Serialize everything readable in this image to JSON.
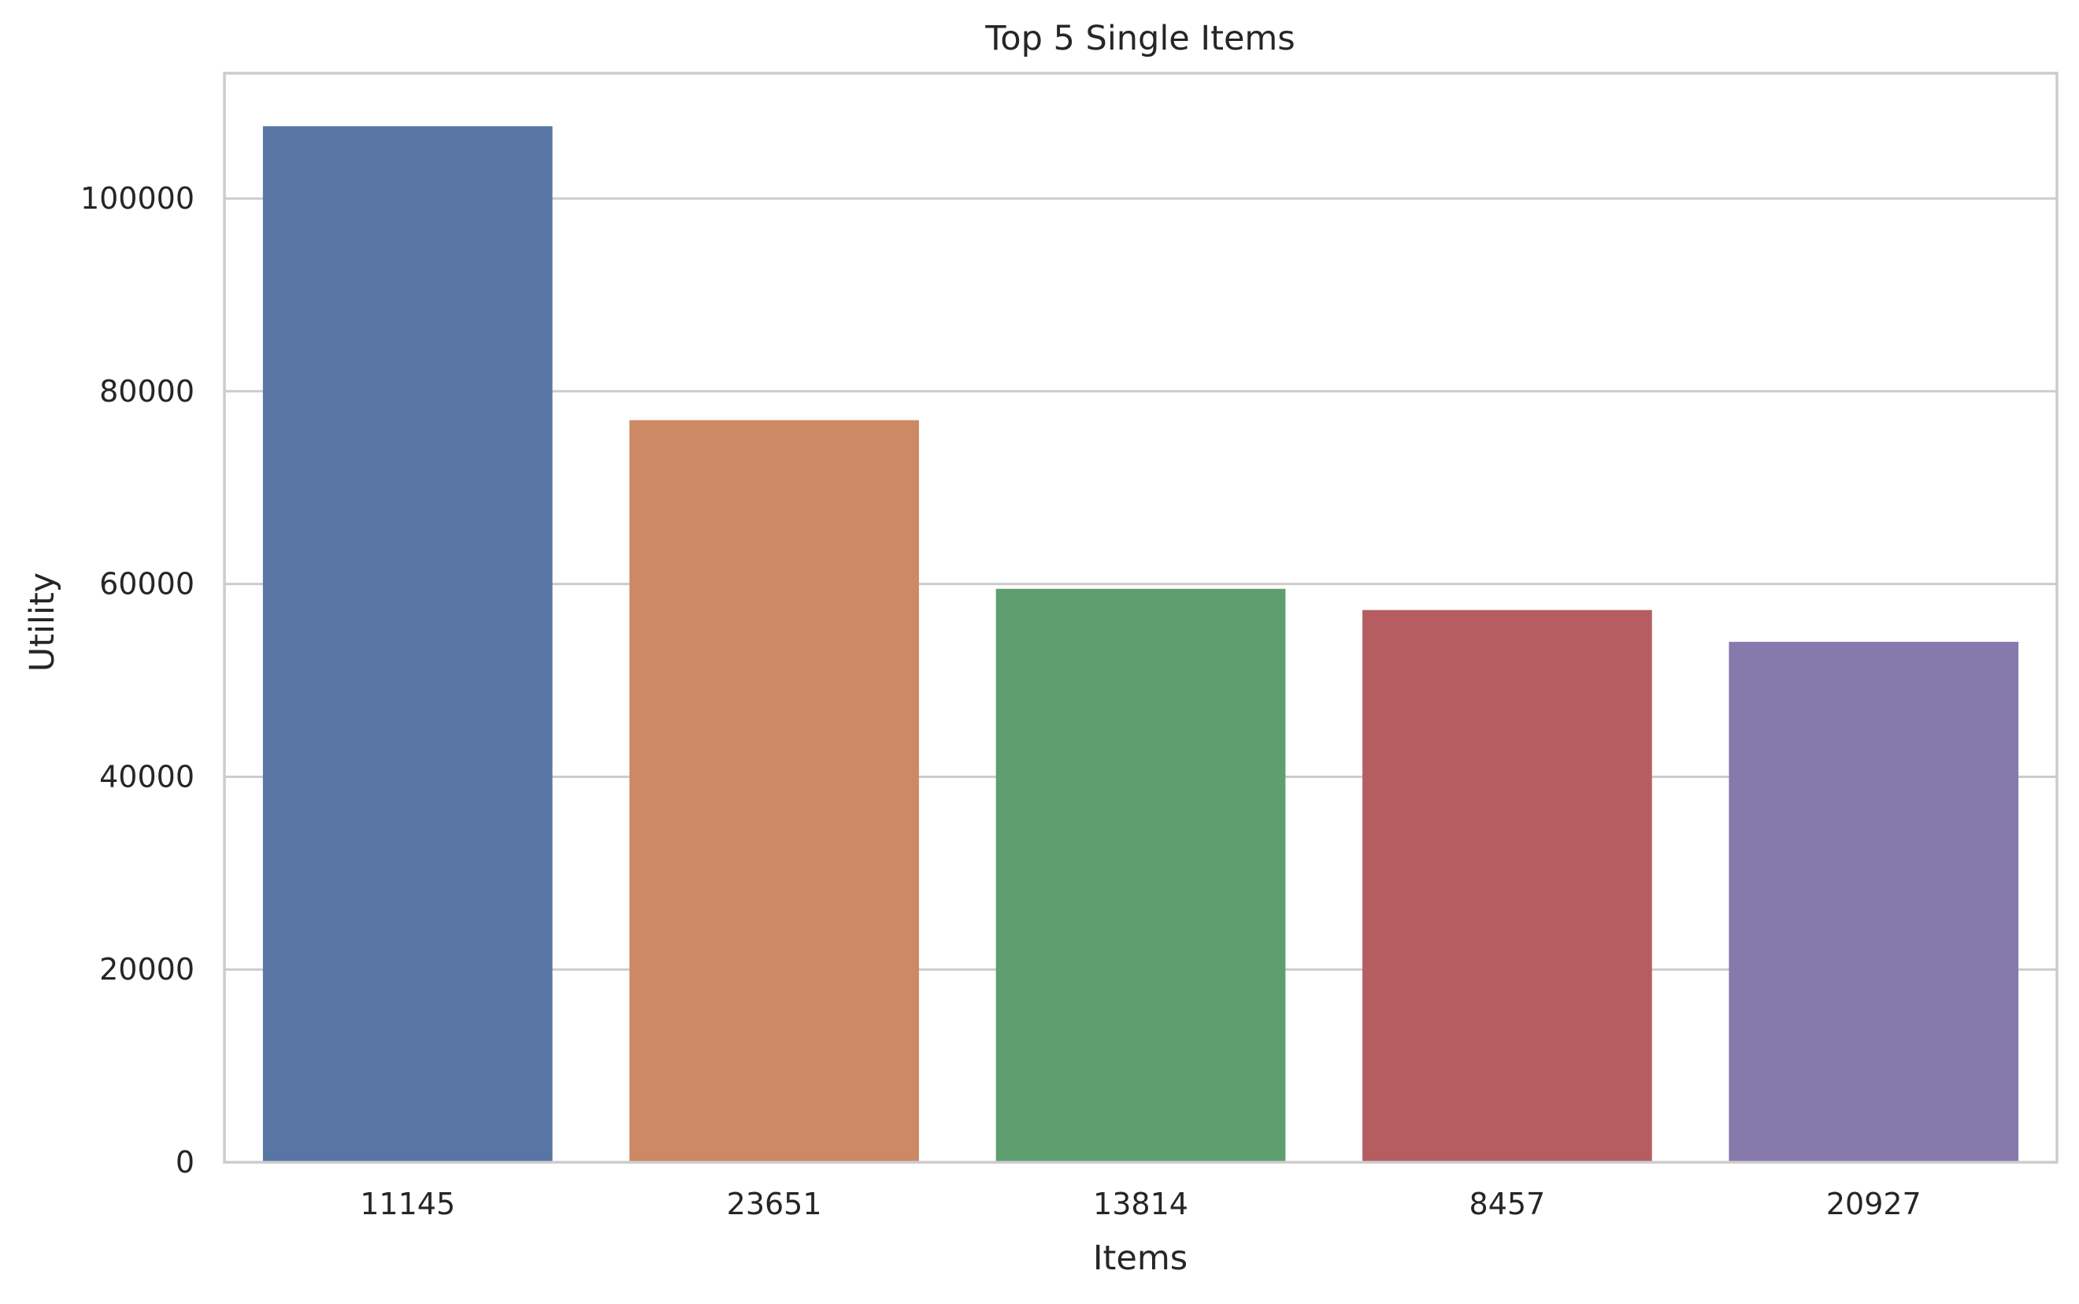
{
  "chart_data": {
    "type": "bar",
    "title": "Top 5 Single Items",
    "xlabel": "Items",
    "ylabel": "Utility",
    "categories": [
      "11145",
      "23651",
      "13814",
      "8457",
      "20927"
    ],
    "values": [
      107500,
      77000,
      59500,
      57300,
      54000
    ],
    "colors": [
      "#5875a4",
      "#cc8963",
      "#5f9e6e",
      "#b55d60",
      "#857aab"
    ],
    "ylim": [
      0,
      113000
    ],
    "yticks": [
      0,
      20000,
      40000,
      60000,
      80000,
      100000
    ],
    "ytick_labels": [
      "0",
      "20000",
      "40000",
      "60000",
      "80000",
      "100000"
    ],
    "grid": "horizontal",
    "legend": "none"
  },
  "style": {
    "grid_color": "#cccccc",
    "spine_color": "#cccccc",
    "text_color": "#262626",
    "background": "#ffffff"
  }
}
